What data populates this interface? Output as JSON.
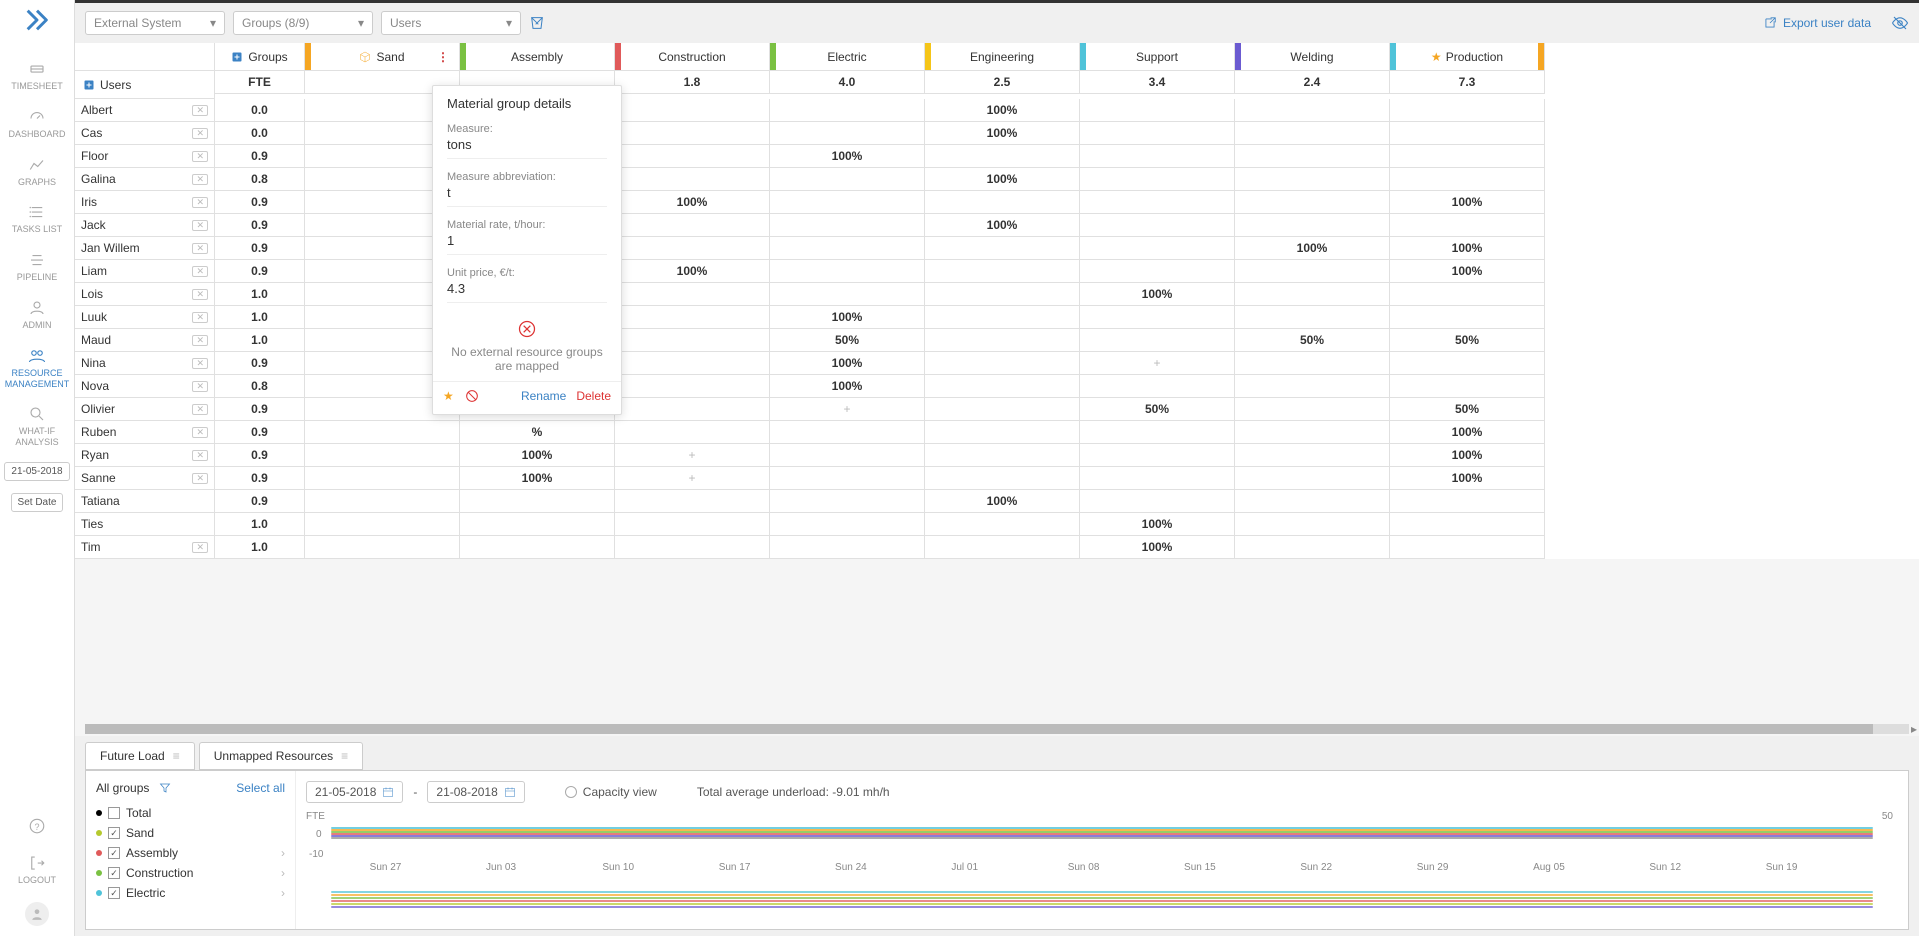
{
  "nav": [
    "TIMESHEET",
    "DASHBOARD",
    "GRAPHS",
    "TASKS LIST",
    "PIPELINE",
    "ADMIN",
    "RESOURCE MANAGEMENT",
    "WHAT-IF ANALYSIS"
  ],
  "nav_active_index": 6,
  "nav_bottom": [
    "LOGOUT"
  ],
  "date_pill": "21-05-2018",
  "set_date": "Set Date",
  "dropdowns": [
    {
      "label": "External System"
    },
    {
      "label": "Groups (8/9)"
    },
    {
      "label": "Users"
    }
  ],
  "export_label": "Export user data",
  "group_headers": [
    {
      "label": "Groups",
      "special": "add"
    },
    {
      "label": "Sand",
      "special": "cube",
      "tab": "#f5a623",
      "menu": true
    },
    {
      "label": "Assembly",
      "tab": "#7ac142"
    },
    {
      "label": "Construction",
      "tab": "#e05a5a"
    },
    {
      "label": "Electric",
      "tab": "#7ac142"
    },
    {
      "label": "Engineering",
      "tab": "#f5c518"
    },
    {
      "label": "Support",
      "tab": "#4fc3d9"
    },
    {
      "label": "Welding",
      "tab": "#6b5bd1"
    },
    {
      "label": "Production",
      "tab": "#4fc3d9",
      "star": true,
      "tab_right": "#f5a623"
    }
  ],
  "fte_row": {
    "label": "Users",
    "fte": "FTE",
    "values": [
      "",
      "",
      "1.8",
      "4.0",
      "2.5",
      "3.4",
      "2.4",
      "7.3"
    ]
  },
  "fte_row_icon": "add",
  "users": [
    {
      "name": "Albert",
      "fte": "0.0",
      "cells": [
        "",
        "",
        "",
        "",
        "100%",
        "",
        "",
        ""
      ]
    },
    {
      "name": "Cas",
      "fte": "0.0",
      "cells": [
        "",
        "",
        "",
        "",
        "100%",
        "",
        "",
        ""
      ]
    },
    {
      "name": "Floor",
      "fte": "0.9",
      "cells": [
        "",
        "",
        "",
        "100%",
        "",
        "",
        "",
        ""
      ]
    },
    {
      "name": "Galina",
      "fte": "0.8",
      "cells": [
        "",
        "",
        "",
        "",
        "100%",
        "",
        "",
        ""
      ]
    },
    {
      "name": "Iris",
      "fte": "0.9",
      "cells": [
        "",
        "",
        "100%",
        "",
        "",
        "",
        "",
        "100%"
      ]
    },
    {
      "name": "Jack",
      "fte": "0.9",
      "cells": [
        "",
        "",
        "",
        "",
        "100%",
        "",
        "",
        ""
      ]
    },
    {
      "name": "Jan Willem",
      "fte": "0.9",
      "cells": [
        "",
        "",
        "",
        "",
        "",
        "",
        "100%",
        "100%"
      ]
    },
    {
      "name": "Liam",
      "fte": "0.9",
      "cells": [
        "",
        "",
        "100%",
        "",
        "",
        "",
        "",
        "100%"
      ]
    },
    {
      "name": "Lois",
      "fte": "1.0",
      "cells": [
        "",
        "",
        "",
        "",
        "",
        "100%",
        "",
        ""
      ]
    },
    {
      "name": "Luuk",
      "fte": "1.0",
      "cells": [
        "",
        "",
        "",
        "100%",
        "",
        "",
        "",
        ""
      ]
    },
    {
      "name": "Maud",
      "fte": "1.0",
      "cells": [
        "",
        "",
        "",
        "50%",
        "",
        "",
        "50%",
        "50%"
      ]
    },
    {
      "name": "Nina",
      "fte": "0.9",
      "cells": [
        "",
        "",
        "",
        "100%",
        "",
        "+",
        "",
        ""
      ]
    },
    {
      "name": "Nova",
      "fte": "0.8",
      "cells": [
        "",
        "",
        "",
        "100%",
        "",
        "",
        "",
        ""
      ]
    },
    {
      "name": "Olivier",
      "fte": "0.9",
      "cells": [
        "",
        "%",
        "",
        "+",
        "",
        "50%",
        "",
        "50%"
      ]
    },
    {
      "name": "Ruben",
      "fte": "0.9",
      "cells": [
        "",
        "%",
        "",
        "",
        "",
        "",
        "",
        "100%"
      ]
    },
    {
      "name": "Ryan",
      "fte": "0.9",
      "cells": [
        "",
        "100%",
        "+",
        "",
        "",
        "",
        "",
        "100%"
      ]
    },
    {
      "name": "Sanne",
      "fte": "0.9",
      "cells": [
        "",
        "100%",
        "+",
        "",
        "",
        "",
        "",
        "100%"
      ]
    },
    {
      "name": "Tatiana",
      "fte": "0.9",
      "cells": [
        "",
        "",
        "",
        "",
        "100%",
        "",
        "",
        ""
      ],
      "no_x": true
    },
    {
      "name": "Ties",
      "fte": "1.0",
      "cells": [
        "",
        "",
        "",
        "",
        "",
        "100%",
        "",
        ""
      ],
      "no_x": true
    },
    {
      "name": "Tim",
      "fte": "1.0",
      "cells": [
        "",
        "",
        "",
        "",
        "",
        "100%",
        "",
        ""
      ]
    }
  ],
  "popup": {
    "title": "Material group details",
    "fields": [
      {
        "label": "Measure:",
        "value": "tons"
      },
      {
        "label": "Measure abbreviation:",
        "value": "t"
      },
      {
        "label": "Material rate, t/hour:",
        "value": "1"
      },
      {
        "label": "Unit price, €/t:",
        "value": "4.3"
      }
    ],
    "warn": "No external resource groups are mapped",
    "rename": "Rename",
    "delete": "Delete"
  },
  "tabs": [
    {
      "label": "Future Load"
    },
    {
      "label": "Unmapped Resources"
    }
  ],
  "legend": {
    "title": "All groups",
    "select_all": "Select all",
    "items": [
      {
        "label": "Total",
        "color": "#000",
        "checked": false,
        "chev": false
      },
      {
        "label": "Sand",
        "color": "#b5c92e",
        "checked": true,
        "chev": false
      },
      {
        "label": "Assembly",
        "color": "#e05a5a",
        "checked": true,
        "chev": true
      },
      {
        "label": "Construction",
        "color": "#7ac142",
        "checked": true,
        "chev": true
      },
      {
        "label": "Electric",
        "color": "#4fc3d9",
        "checked": true,
        "chev": true
      }
    ]
  },
  "chart": {
    "from": "21-05-2018",
    "to": "21-08-2018",
    "cap": "Capacity view",
    "underload": "Total average underload: -9.01 mh/h",
    "ylabel": "FTE",
    "yticks": [
      "0",
      "-10"
    ],
    "ytick_right": "50",
    "xlabels": [
      "Sun 27",
      "Jun 03",
      "Sun 10",
      "Sun 17",
      "Sun 24",
      "Jul 01",
      "Sun 08",
      "Sun 15",
      "Sun 22",
      "Sun 29",
      "Aug 05",
      "Sun 12",
      "Sun 19"
    ],
    "line_colors": [
      "#4fc3d9",
      "#f5a623",
      "#7ac142",
      "#e05a5a",
      "#6b5bd1",
      "#999"
    ],
    "second_band_colors": [
      "#4fc3d9",
      "#f5a623",
      "#7ac142",
      "#e05a5a",
      "#b5c92e",
      "#6b5bd1"
    ]
  }
}
